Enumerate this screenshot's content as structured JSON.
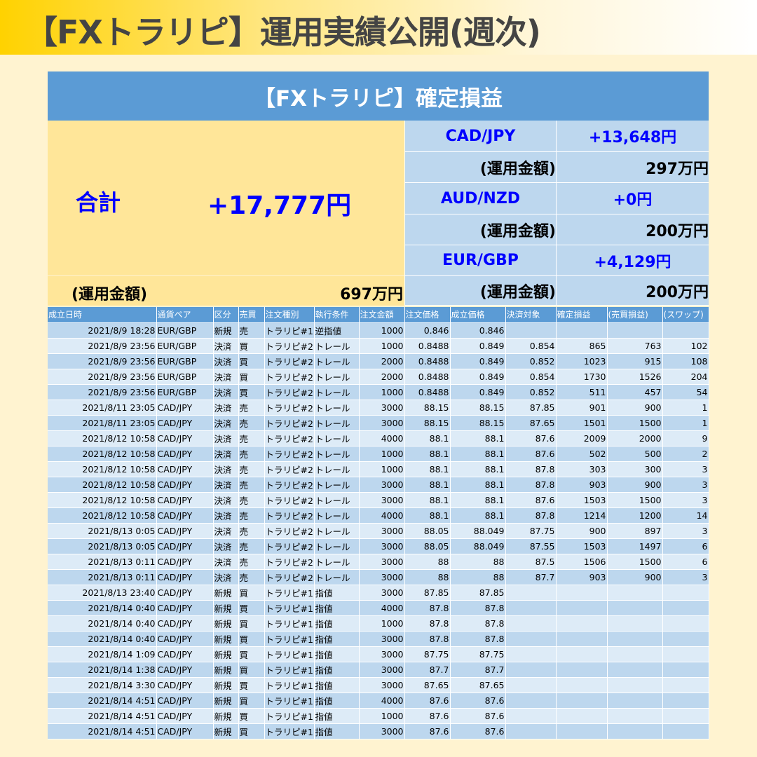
{
  "header": {
    "title": "【FXトラリピ】運用実績公開(週次)"
  },
  "summary": {
    "title": "【FXトラリピ】確定損益",
    "total_label": "合計",
    "total_value": "+17,777円",
    "total_fund_label": "(運用金額)",
    "total_fund_value": "697万円",
    "pairs": [
      {
        "pair": "CAD/JPY",
        "profit": "+13,648円",
        "fund_label": "(運用金額)",
        "fund": "297万円"
      },
      {
        "pair": "AUD/NZD",
        "profit": "+0円",
        "fund_label": "(運用金額)",
        "fund": "200万円"
      },
      {
        "pair": "EUR/GBP",
        "profit": "+4,129円",
        "fund_label": "(運用金額)",
        "fund": "200万円"
      }
    ]
  },
  "table": {
    "columns": [
      "成立日時",
      "通貨ペア",
      "区分",
      "売買",
      "注文種別",
      "執行条件",
      "注文金額",
      "注文価格",
      "成立価格",
      "決済対象",
      "確定損益",
      "(売買損益)",
      "(スワップ)"
    ],
    "rows": [
      [
        "2021/8/9 18:28",
        "EUR/GBP",
        "新規",
        "売",
        "トラリピ#1",
        "逆指値",
        "1000",
        "0.846",
        "0.846",
        "",
        "",
        "",
        ""
      ],
      [
        "2021/8/9 23:56",
        "EUR/GBP",
        "決済",
        "買",
        "トラリピ#2",
        "トレール",
        "1000",
        "0.8488",
        "0.849",
        "0.854",
        "865",
        "763",
        "102"
      ],
      [
        "2021/8/9 23:56",
        "EUR/GBP",
        "決済",
        "買",
        "トラリピ#2",
        "トレール",
        "2000",
        "0.8488",
        "0.849",
        "0.852",
        "1023",
        "915",
        "108"
      ],
      [
        "2021/8/9 23:56",
        "EUR/GBP",
        "決済",
        "買",
        "トラリピ#2",
        "トレール",
        "2000",
        "0.8488",
        "0.849",
        "0.854",
        "1730",
        "1526",
        "204"
      ],
      [
        "2021/8/9 23:56",
        "EUR/GBP",
        "決済",
        "買",
        "トラリピ#2",
        "トレール",
        "1000",
        "0.8488",
        "0.849",
        "0.852",
        "511",
        "457",
        "54"
      ],
      [
        "2021/8/11 23:05",
        "CAD/JPY",
        "決済",
        "売",
        "トラリピ#2",
        "トレール",
        "3000",
        "88.15",
        "88.15",
        "87.85",
        "901",
        "900",
        "1"
      ],
      [
        "2021/8/11 23:05",
        "CAD/JPY",
        "決済",
        "売",
        "トラリピ#2",
        "トレール",
        "3000",
        "88.15",
        "88.15",
        "87.65",
        "1501",
        "1500",
        "1"
      ],
      [
        "2021/8/12 10:58",
        "CAD/JPY",
        "決済",
        "売",
        "トラリピ#2",
        "トレール",
        "4000",
        "88.1",
        "88.1",
        "87.6",
        "2009",
        "2000",
        "9"
      ],
      [
        "2021/8/12 10:58",
        "CAD/JPY",
        "決済",
        "売",
        "トラリピ#2",
        "トレール",
        "1000",
        "88.1",
        "88.1",
        "87.6",
        "502",
        "500",
        "2"
      ],
      [
        "2021/8/12 10:58",
        "CAD/JPY",
        "決済",
        "売",
        "トラリピ#2",
        "トレール",
        "1000",
        "88.1",
        "88.1",
        "87.8",
        "303",
        "300",
        "3"
      ],
      [
        "2021/8/12 10:58",
        "CAD/JPY",
        "決済",
        "売",
        "トラリピ#2",
        "トレール",
        "3000",
        "88.1",
        "88.1",
        "87.8",
        "903",
        "900",
        "3"
      ],
      [
        "2021/8/12 10:58",
        "CAD/JPY",
        "決済",
        "売",
        "トラリピ#2",
        "トレール",
        "3000",
        "88.1",
        "88.1",
        "87.6",
        "1503",
        "1500",
        "3"
      ],
      [
        "2021/8/12 10:58",
        "CAD/JPY",
        "決済",
        "売",
        "トラリピ#2",
        "トレール",
        "4000",
        "88.1",
        "88.1",
        "87.8",
        "1214",
        "1200",
        "14"
      ],
      [
        "2021/8/13 0:05",
        "CAD/JPY",
        "決済",
        "売",
        "トラリピ#2",
        "トレール",
        "3000",
        "88.05",
        "88.049",
        "87.75",
        "900",
        "897",
        "3"
      ],
      [
        "2021/8/13 0:05",
        "CAD/JPY",
        "決済",
        "売",
        "トラリピ#2",
        "トレール",
        "3000",
        "88.05",
        "88.049",
        "87.55",
        "1503",
        "1497",
        "6"
      ],
      [
        "2021/8/13 0:11",
        "CAD/JPY",
        "決済",
        "売",
        "トラリピ#2",
        "トレール",
        "3000",
        "88",
        "88",
        "87.5",
        "1506",
        "1500",
        "6"
      ],
      [
        "2021/8/13 0:11",
        "CAD/JPY",
        "決済",
        "売",
        "トラリピ#2",
        "トレール",
        "3000",
        "88",
        "88",
        "87.7",
        "903",
        "900",
        "3"
      ],
      [
        "2021/8/13 23:40",
        "CAD/JPY",
        "新規",
        "買",
        "トラリピ#1",
        "指値",
        "3000",
        "87.85",
        "87.85",
        "",
        "",
        "",
        ""
      ],
      [
        "2021/8/14 0:40",
        "CAD/JPY",
        "新規",
        "買",
        "トラリピ#1",
        "指値",
        "4000",
        "87.8",
        "87.8",
        "",
        "",
        "",
        ""
      ],
      [
        "2021/8/14 0:40",
        "CAD/JPY",
        "新規",
        "買",
        "トラリピ#1",
        "指値",
        "1000",
        "87.8",
        "87.8",
        "",
        "",
        "",
        ""
      ],
      [
        "2021/8/14 0:40",
        "CAD/JPY",
        "新規",
        "買",
        "トラリピ#1",
        "指値",
        "3000",
        "87.8",
        "87.8",
        "",
        "",
        "",
        ""
      ],
      [
        "2021/8/14 1:09",
        "CAD/JPY",
        "新規",
        "買",
        "トラリピ#1",
        "指値",
        "3000",
        "87.75",
        "87.75",
        "",
        "",
        "",
        ""
      ],
      [
        "2021/8/14 1:38",
        "CAD/JPY",
        "新規",
        "買",
        "トラリピ#1",
        "指値",
        "3000",
        "87.7",
        "87.7",
        "",
        "",
        "",
        ""
      ],
      [
        "2021/8/14 3:30",
        "CAD/JPY",
        "新規",
        "買",
        "トラリピ#1",
        "指値",
        "3000",
        "87.65",
        "87.65",
        "",
        "",
        "",
        ""
      ],
      [
        "2021/8/14 4:51",
        "CAD/JPY",
        "新規",
        "買",
        "トラリピ#1",
        "指値",
        "4000",
        "87.6",
        "87.6",
        "",
        "",
        "",
        ""
      ],
      [
        "2021/8/14 4:51",
        "CAD/JPY",
        "新規",
        "買",
        "トラリピ#1",
        "指値",
        "1000",
        "87.6",
        "87.6",
        "",
        "",
        "",
        ""
      ],
      [
        "2021/8/14 4:51",
        "CAD/JPY",
        "新規",
        "買",
        "トラリピ#1",
        "指値",
        "3000",
        "87.6",
        "87.6",
        "",
        "",
        "",
        ""
      ]
    ]
  }
}
